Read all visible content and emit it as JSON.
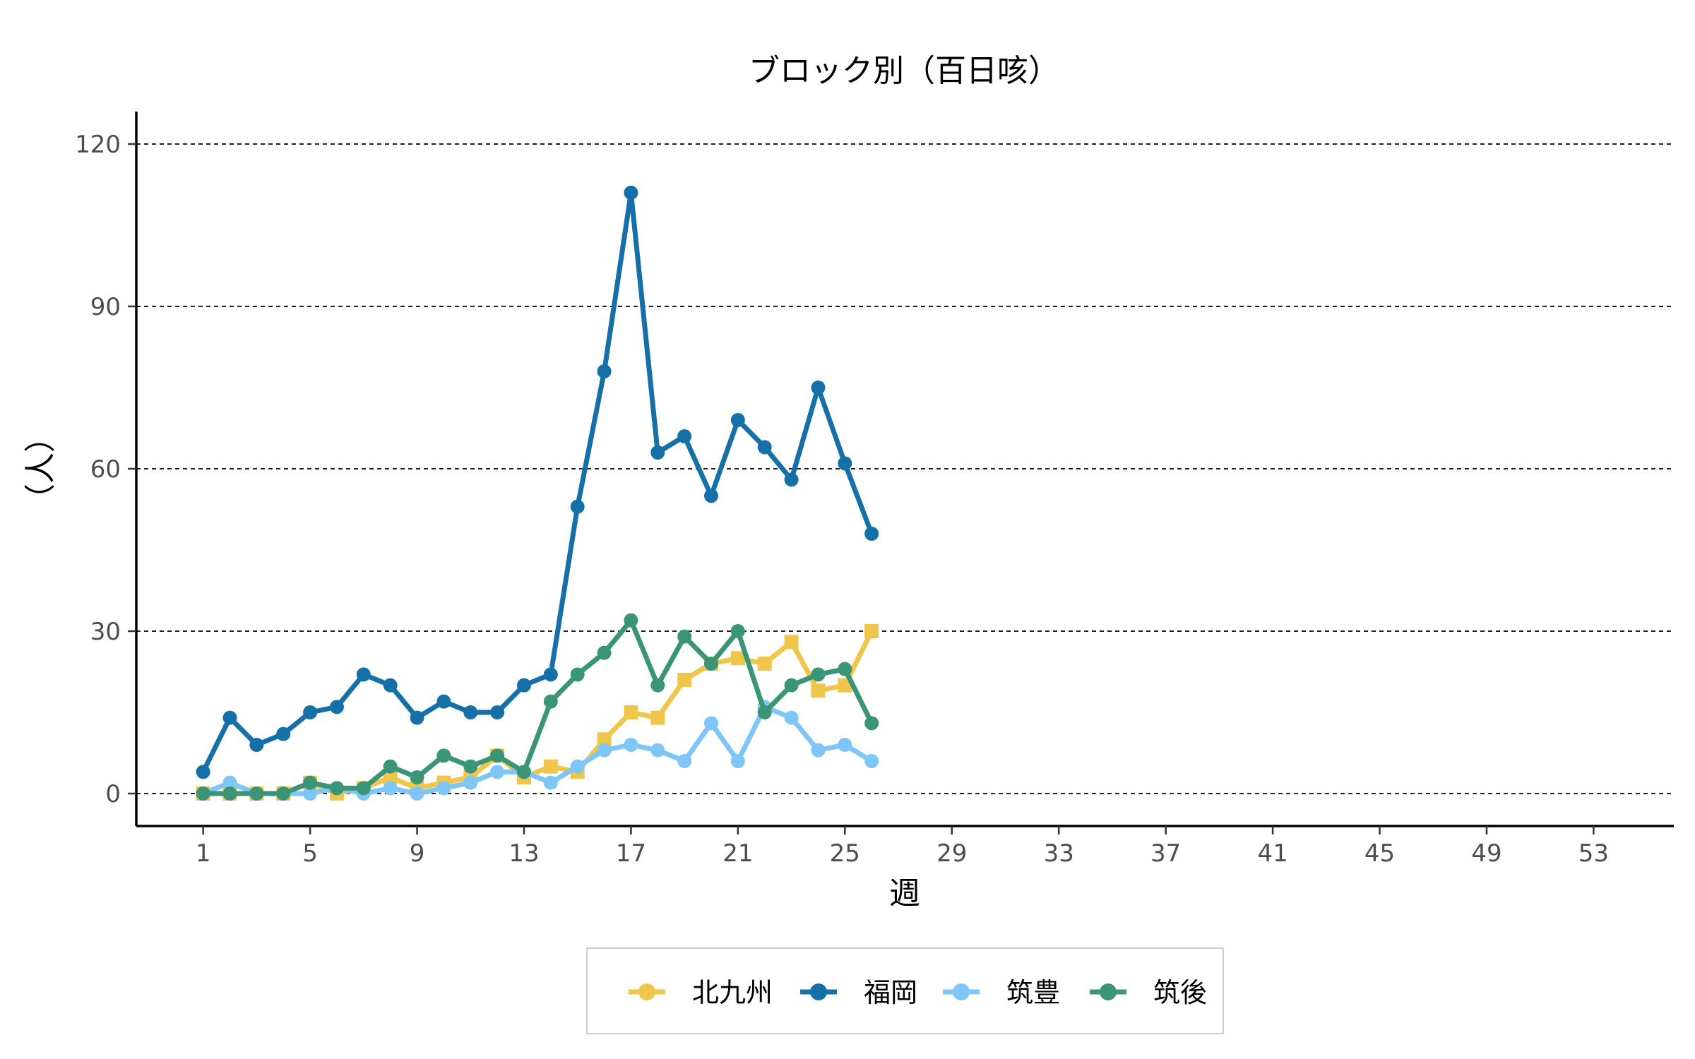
{
  "chart_data": {
    "type": "line",
    "title": "ブロック別（百日咳）",
    "xlabel": "週",
    "ylabel": "（人）",
    "x": [
      1,
      2,
      3,
      4,
      5,
      6,
      7,
      8,
      9,
      10,
      11,
      12,
      13,
      14,
      15,
      16,
      17,
      18,
      19,
      20,
      21,
      22,
      23,
      24,
      25,
      26
    ],
    "xlim": [
      -1.5,
      56
    ],
    "ylim": [
      -6,
      126
    ],
    "x_ticks": [
      1,
      5,
      9,
      13,
      17,
      21,
      25,
      29,
      33,
      37,
      41,
      45,
      49,
      53
    ],
    "y_ticks": [
      0,
      30,
      60,
      90,
      120
    ],
    "grid": "horizontal dashed",
    "legend_position": "bottom",
    "series": [
      {
        "name": "北九州",
        "color": "#EFC54A",
        "marker": "square",
        "values": [
          0,
          0,
          0,
          0,
          2,
          0,
          1,
          3,
          1,
          2,
          3,
          7,
          3,
          5,
          4,
          10,
          15,
          14,
          21,
          24,
          25,
          24,
          28,
          19,
          20,
          30
        ]
      },
      {
        "name": "福岡",
        "color": "#1670A8",
        "marker": "circle",
        "values": [
          4,
          14,
          9,
          11,
          15,
          16,
          22,
          20,
          14,
          17,
          15,
          15,
          20,
          22,
          53,
          78,
          111,
          63,
          66,
          55,
          69,
          64,
          58,
          75,
          61,
          48
        ]
      },
      {
        "name": "筑豊",
        "color": "#7DC6F7",
        "marker": "circle",
        "values": [
          0,
          2,
          0,
          0,
          0,
          1,
          0,
          1,
          0,
          1,
          2,
          4,
          4,
          2,
          5,
          8,
          9,
          8,
          6,
          13,
          6,
          16,
          14,
          8,
          9,
          6
        ]
      },
      {
        "name": "筑後",
        "color": "#3A9577",
        "marker": "circle",
        "values": [
          0,
          0,
          0,
          0,
          2,
          1,
          1,
          5,
          3,
          7,
          5,
          7,
          4,
          17,
          22,
          26,
          32,
          20,
          29,
          24,
          30,
          15,
          20,
          22,
          23,
          13
        ]
      }
    ]
  }
}
